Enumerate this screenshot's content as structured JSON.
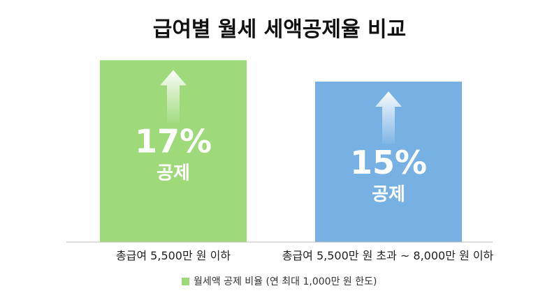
{
  "chart_data": {
    "type": "bar",
    "title": "급여별 월세 세액공제율 비교",
    "categories": [
      "총급여 5,500만 원 이하",
      "총급여 5,500만 원 초과 ~ 8,000만 원 이하"
    ],
    "values": [
      17,
      15
    ],
    "value_labels": [
      "17%",
      "15%"
    ],
    "bar_sublabel": "공제",
    "unit": "%",
    "ylim": [
      0,
      18
    ],
    "grid": false,
    "colors": [
      "#9ed97a",
      "#77b1e4"
    ],
    "legend": {
      "position": "bottom-center",
      "color": "#9ed97a",
      "label": "월세액 공제 비율 (연 최대 1,000만 원 한도)"
    }
  }
}
